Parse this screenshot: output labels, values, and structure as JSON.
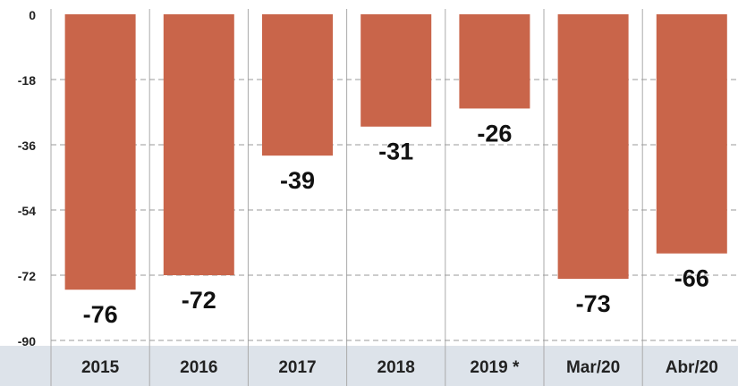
{
  "chart_data": {
    "type": "bar",
    "categories": [
      "2015",
      "2016",
      "2017",
      "2018",
      "2019 *",
      "Mar/20",
      "Abr/20"
    ],
    "values": [
      -76,
      -72,
      -39,
      -31,
      -26,
      -73,
      -66
    ],
    "data_labels": [
      "-76",
      "-72",
      "-39",
      "-31",
      "-26",
      "-73",
      "-66"
    ],
    "y_ticks": [
      0,
      -18,
      -36,
      -54,
      -72,
      -90
    ],
    "y_tick_labels": [
      "0",
      "-18",
      "-36",
      "-54",
      "-72",
      "-90"
    ],
    "ylim": [
      -90,
      0
    ],
    "grid": true,
    "legend": "none",
    "colors": {
      "bar": "#c9654a",
      "axis_band": "#dde3ea",
      "grid": "#9a9a9a"
    }
  }
}
